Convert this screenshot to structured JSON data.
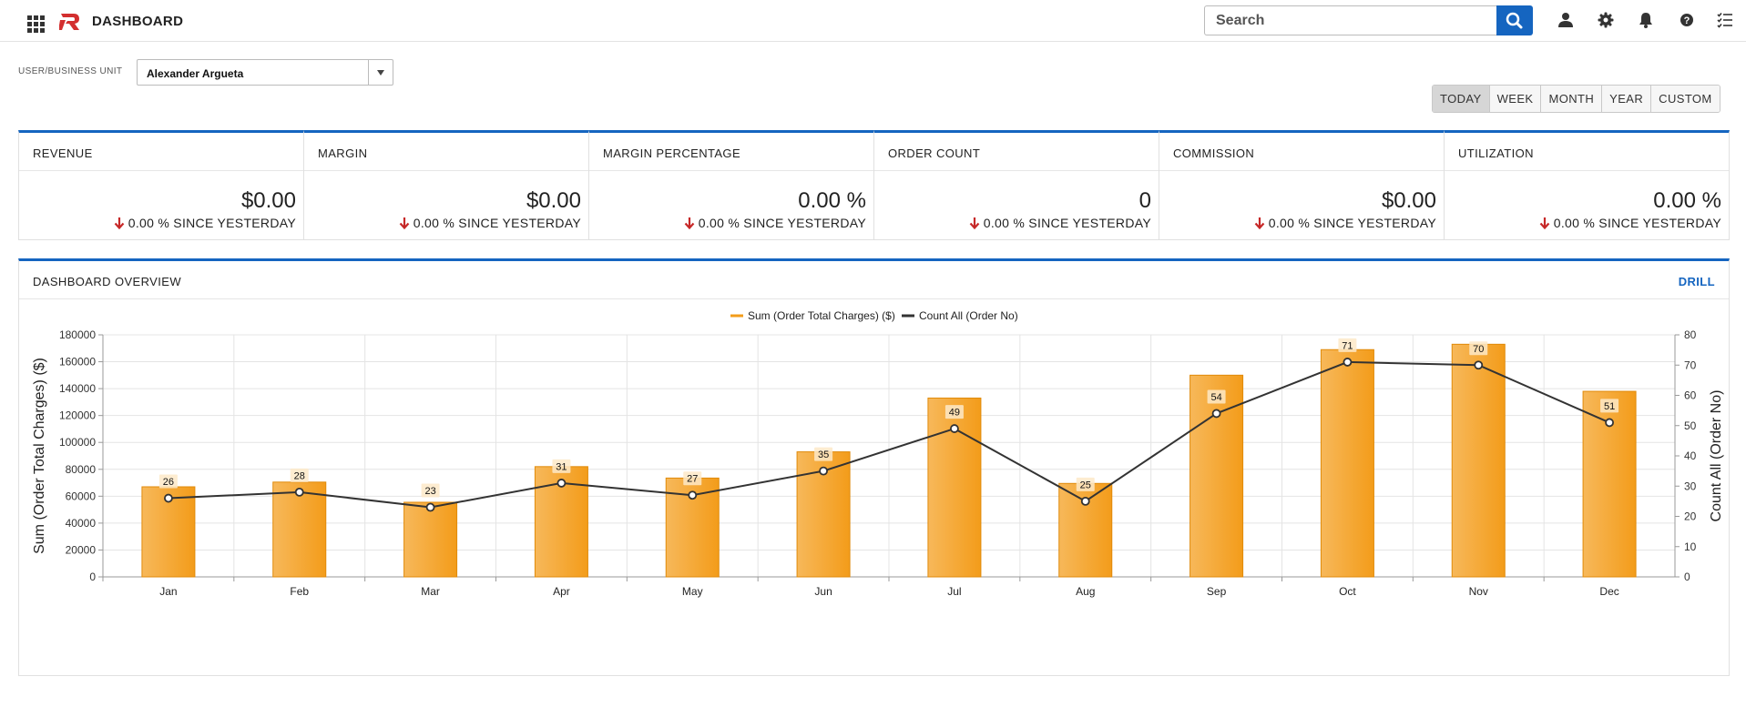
{
  "header": {
    "title": "DASHBOARD",
    "search_placeholder": "Search"
  },
  "filter": {
    "label": "USER/BUSINESS UNIT",
    "selected_user": "Alexander Argueta"
  },
  "periods": [
    "TODAY",
    "WEEK",
    "MONTH",
    "YEAR",
    "CUSTOM"
  ],
  "active_period": "TODAY",
  "kpis": [
    {
      "label": "REVENUE",
      "value": "$0.00",
      "change": "0.00 % SINCE YESTERDAY"
    },
    {
      "label": "MARGIN",
      "value": "$0.00",
      "change": "0.00 % SINCE YESTERDAY"
    },
    {
      "label": "MARGIN PERCENTAGE",
      "value": "0.00 %",
      "change": "0.00 % SINCE YESTERDAY"
    },
    {
      "label": "ORDER COUNT",
      "value": "0",
      "change": "0.00 % SINCE YESTERDAY"
    },
    {
      "label": "COMMISSION",
      "value": "$0.00",
      "change": "0.00 % SINCE YESTERDAY"
    },
    {
      "label": "UTILIZATION",
      "value": "0.00 %",
      "change": "0.00 % SINCE YESTERDAY"
    }
  ],
  "overview": {
    "title": "DASHBOARD OVERVIEW",
    "drill_label": "DRILL"
  },
  "colors": {
    "accent": "#1565c0",
    "bar": "#f39c1a",
    "line": "#333333",
    "down": "#c62828"
  },
  "chart_data": {
    "type": "bar",
    "categories": [
      "Jan",
      "Feb",
      "Mar",
      "Apr",
      "May",
      "Jun",
      "Jul",
      "Aug",
      "Sep",
      "Oct",
      "Nov",
      "Dec"
    ],
    "series": [
      {
        "name": "Sum (Order Total Charges) ($)",
        "type": "bar",
        "axis": "left",
        "values": [
          67000,
          70500,
          55500,
          82000,
          73500,
          93000,
          133000,
          69500,
          150000,
          169000,
          173000,
          138000
        ]
      },
      {
        "name": "Count All (Order No)",
        "type": "line",
        "axis": "right",
        "values": [
          26,
          28,
          23,
          31,
          27,
          35,
          49,
          25,
          54,
          71,
          70,
          51
        ]
      }
    ],
    "ylabel": "Sum (Order Total Charges) ($)",
    "y2label": "Count All (Order No)",
    "ylim": [
      0,
      180000
    ],
    "yticks": [
      0,
      20000,
      40000,
      60000,
      80000,
      100000,
      120000,
      140000,
      160000,
      180000
    ],
    "y2lim": [
      0,
      80
    ],
    "y2ticks": [
      0,
      10,
      20,
      30,
      40,
      50,
      60,
      70,
      80
    ],
    "grid": true,
    "legend_position": "top-center"
  }
}
